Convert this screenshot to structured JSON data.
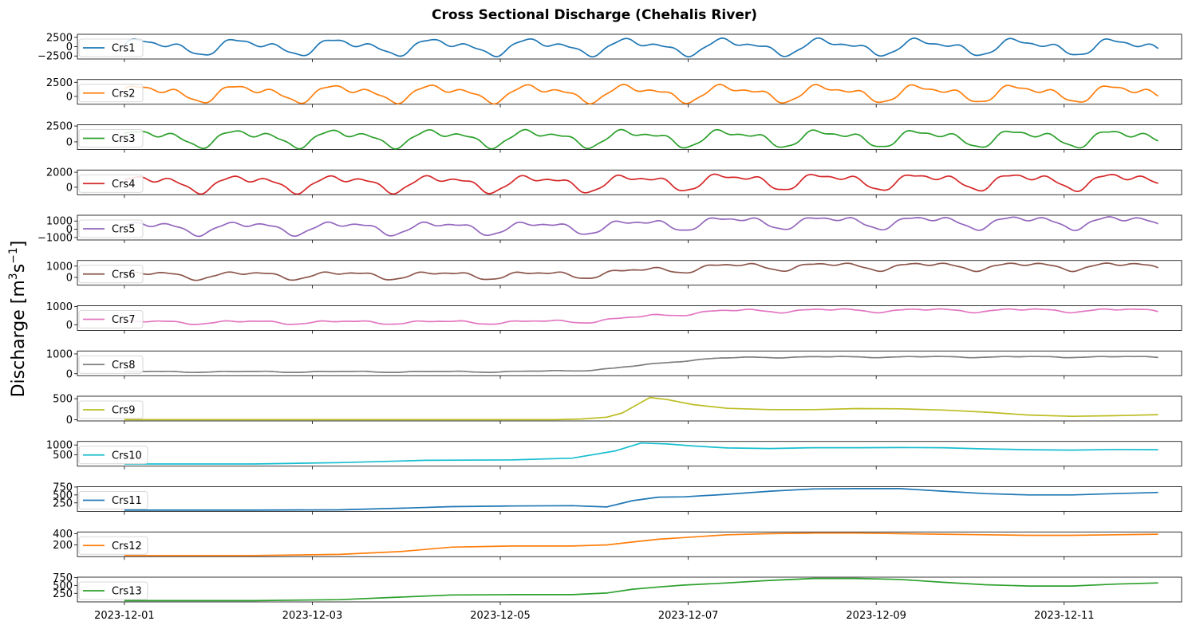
{
  "chart_data": {
    "type": "line",
    "title": "Cross Sectional Discharge (Chehalis River)",
    "ylabel": "Discharge [m³s⁻¹]",
    "ylabel_parts": {
      "base": "Discharge [m",
      "sup1": "3",
      "mid": "s",
      "sup2": "−1",
      "end": "]"
    },
    "xlim": [
      "2023-11-30T12:00",
      "2023-12-12T06:00"
    ],
    "xticks": [
      "2023-12-01",
      "2023-12-03",
      "2023-12-05",
      "2023-12-07",
      "2023-12-09",
      "2023-12-11"
    ],
    "x_start": "2023-12-01T00:00",
    "x_end": "2023-12-12T00:00",
    "grid": false,
    "legend_placement": "left",
    "panels": [
      {
        "name": "Crs1",
        "color": "#1f77b4",
        "kind": "tidal",
        "ylim": [
          -3300,
          3300
        ],
        "yticks": [
          2500,
          0,
          -2500
        ],
        "params": {
          "amp": 2700,
          "base": 0,
          "dc": 0
        }
      },
      {
        "name": "Crs2",
        "color": "#ff7f0e",
        "kind": "tidal",
        "ylim": [
          -1400,
          3000
        ],
        "yticks": [
          2500,
          0
        ],
        "params": {
          "amp": 1900,
          "base": 600,
          "dc": 0
        }
      },
      {
        "name": "Crs3",
        "color": "#2ca02c",
        "kind": "tidal",
        "ylim": [
          -1200,
          2700
        ],
        "yticks": [
          2500,
          0
        ],
        "params": {
          "amp": 1700,
          "base": 650,
          "dc": 0
        }
      },
      {
        "name": "Crs4",
        "color": "#d62728",
        "kind": "tidal",
        "ylim": [
          -1000,
          2300
        ],
        "yticks": [
          2000,
          0
        ],
        "params": {
          "amp": 1400,
          "base": 550,
          "dc": 300
        }
      },
      {
        "name": "Crs5",
        "color": "#9467bd",
        "kind": "tidal",
        "ylim": [
          -1300,
          1700
        ],
        "yticks": [
          1000,
          0,
          -1000
        ],
        "params": {
          "amp": 1000,
          "base": 200,
          "dc": 700
        }
      },
      {
        "name": "Crs6",
        "color": "#8c564b",
        "kind": "tidal",
        "ylim": [
          -700,
          1500
        ],
        "yticks": [
          1000,
          0
        ],
        "params": {
          "amp": 450,
          "base": 200,
          "dc": 800
        }
      },
      {
        "name": "Crs7",
        "color": "#e377c2",
        "kind": "tidal",
        "ylim": [
          -300,
          1050
        ],
        "yticks": [
          1000,
          0
        ],
        "params": {
          "amp": 130,
          "base": 150,
          "dc": 650
        }
      },
      {
        "name": "Crs8",
        "color": "#7f7f7f",
        "kind": "tidal",
        "ylim": [
          -100,
          1150
        ],
        "yticks": [
          1000,
          0
        ],
        "params": {
          "amp": 40,
          "base": 100,
          "dc": 750
        }
      },
      {
        "name": "Crs9",
        "color": "#bcbd22",
        "kind": "points",
        "ylim": [
          -30,
          560
        ],
        "yticks": [
          500,
          0
        ],
        "x": [
          0,
          4.6,
          5,
          5.3,
          5.6,
          5.78,
          6.1,
          6.3,
          6.6,
          7,
          7.5,
          8,
          8.5,
          9,
          9.5,
          10,
          10.5,
          11,
          11.6,
          12
        ],
        "y": [
          0,
          0,
          0,
          15,
          60,
          160,
          530,
          480,
          360,
          270,
          240,
          240,
          265,
          260,
          230,
          180,
          110,
          80,
          100,
          120
        ]
      },
      {
        "name": "Crs10",
        "color": "#17becf",
        "kind": "points",
        "ylim": [
          -80,
          1180
        ],
        "yticks": [
          1000,
          500
        ],
        "x": [
          0,
          1.5,
          2.5,
          3.5,
          4.5,
          5.2,
          5.7,
          6,
          6.3,
          6.6,
          7,
          7.5,
          8,
          8.5,
          9,
          9.5,
          10,
          10.5,
          11,
          11.5,
          12
        ],
        "y": [
          30,
          30,
          100,
          220,
          240,
          330,
          700,
          1100,
          1050,
          950,
          850,
          820,
          860,
          860,
          870,
          860,
          800,
          760,
          740,
          770,
          760
        ]
      },
      {
        "name": "Crs11",
        "color": "#1f77b4",
        "kind": "points",
        "ylim": [
          -20,
          760
        ],
        "yticks": [
          750,
          500,
          250
        ],
        "x": [
          0,
          1.5,
          2.5,
          3.2,
          3.8,
          4.5,
          5.2,
          5.6,
          5.9,
          6.2,
          6.5,
          7,
          7.5,
          8,
          8.5,
          9,
          9.5,
          10,
          10.5,
          11,
          11.5,
          12
        ],
        "y": [
          20,
          20,
          30,
          80,
          130,
          150,
          160,
          120,
          320,
          430,
          440,
          520,
          620,
          690,
          700,
          700,
          620,
          540,
          500,
          500,
          540,
          580
        ]
      },
      {
        "name": "Crs12",
        "color": "#ff7f0e",
        "kind": "points",
        "ylim": [
          -10,
          430
        ],
        "yticks": [
          400,
          200
        ],
        "x": [
          0,
          1.5,
          2.5,
          3.2,
          3.8,
          4.5,
          5.2,
          5.6,
          5.9,
          6.2,
          6.5,
          7,
          7.5,
          8,
          8.5,
          9,
          9.5,
          10,
          10.5,
          11,
          11.5,
          12
        ],
        "y": [
          10,
          10,
          30,
          80,
          160,
          180,
          180,
          200,
          250,
          300,
          330,
          380,
          400,
          410,
          410,
          400,
          390,
          380,
          370,
          370,
          380,
          390
        ]
      },
      {
        "name": "Crs13",
        "color": "#2ca02c",
        "kind": "points",
        "ylim": [
          -20,
          760
        ],
        "yticks": [
          750,
          500,
          250
        ],
        "x": [
          0,
          1.5,
          2.5,
          3.2,
          3.8,
          4.5,
          5.2,
          5.6,
          5.9,
          6.2,
          6.5,
          7,
          7.5,
          8,
          8.5,
          9,
          9.5,
          10,
          10.5,
          11,
          11.5,
          12
        ],
        "y": [
          20,
          20,
          50,
          130,
          200,
          210,
          210,
          260,
          380,
          450,
          510,
          580,
          660,
          720,
          720,
          690,
          600,
          520,
          480,
          480,
          540,
          580
        ]
      }
    ]
  }
}
